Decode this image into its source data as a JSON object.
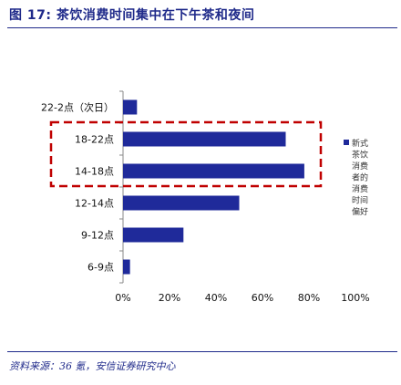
{
  "header": {
    "figure_label": "图 17:",
    "title": "茶饮消费时间集中在下午茶和夜间"
  },
  "source": "资料来源：36 氪，安信证券研究中心",
  "colors": {
    "bar": "#1f2a9a",
    "highlight_box": "#c00000",
    "rule": "#1f2a8a"
  },
  "chart_data": {
    "type": "bar",
    "orientation": "horizontal",
    "categories": [
      "22-2点（次日）",
      "18-22点",
      "14-18点",
      "12-14点",
      "9-12点",
      "6-9点"
    ],
    "values": [
      0.06,
      0.7,
      0.78,
      0.5,
      0.26,
      0.03
    ],
    "xlim": [
      0,
      1
    ],
    "x_ticks": [
      "0%",
      "20%",
      "40%",
      "60%",
      "80%",
      "100%"
    ],
    "series": [
      {
        "name": "新式茶饮消费者的消费时间偏好",
        "values": [
          0.06,
          0.7,
          0.78,
          0.5,
          0.26,
          0.03
        ]
      }
    ],
    "legend": {
      "label_lines": [
        "新式",
        "茶饮",
        "消费",
        "者的",
        "消费",
        "时间",
        "偏好"
      ],
      "position": "right"
    },
    "highlighted_categories": [
      "18-22点",
      "14-18点"
    ],
    "grid": false
  }
}
